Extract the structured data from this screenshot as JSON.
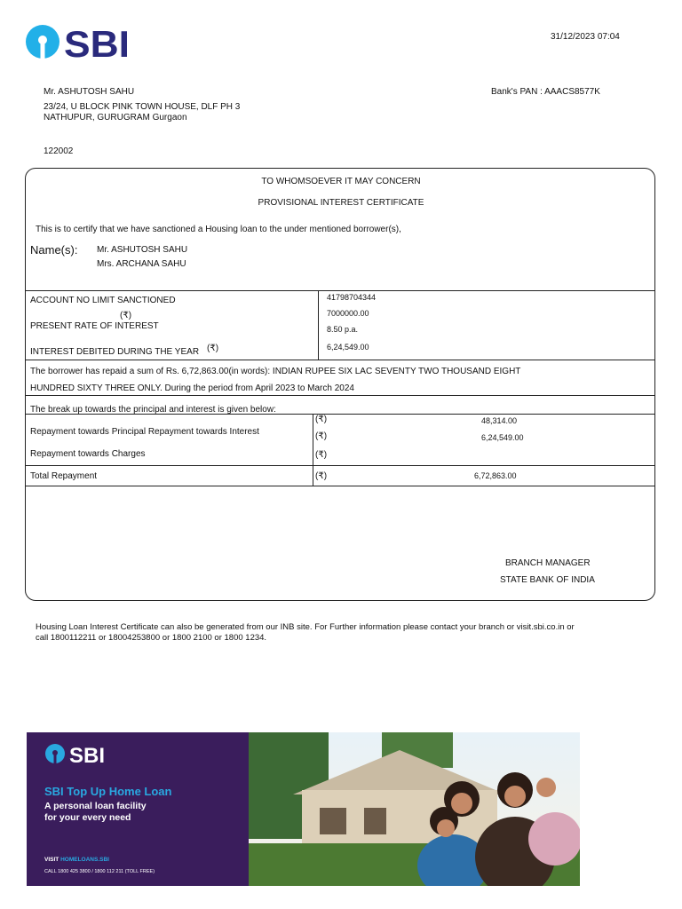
{
  "header": {
    "logo_text": "SBI",
    "datetime": "31/12/2023 07:04",
    "bank_pan": "Bank's PAN : AAACS8577K"
  },
  "address": {
    "name": "Mr. ASHUTOSH  SAHU",
    "line1": "23/24, U BLOCK PINK TOWN HOUSE, DLF PH 3",
    "line2": "NATHUPUR, GURUGRAM Gurgaon",
    "pin": "122002"
  },
  "certificate": {
    "title1": "TO WHOMSOEVER IT MAY CONCERN",
    "title2": "PROVISIONAL INTEREST CERTIFICATE",
    "intro": "This is to certify that we have sanctioned a Housing loan to the under mentioned borrower(s),",
    "names_label": "Name(s):",
    "names": [
      "Mr. ASHUTOSH  SAHU",
      "Mrs. ARCHANA SAHU"
    ],
    "account_label": "ACCOUNT NO LIMIT SANCTIONED",
    "rupee": "(₹)",
    "rate_label": "PRESENT RATE OF INTEREST",
    "interest_label": "INTEREST DEBITED DURING THE YEAR",
    "account_no": "41798704344",
    "limit": "7000000.00",
    "rate": "8.50 p.a.",
    "interest": "6,24,549.00",
    "repaid_line1": "The borrower has repaid a sum of Rs. 6,72,863.00(in words): INDIAN RUPEE SIX LAC SEVENTY TWO THOUSAND EIGHT",
    "repaid_line2": "HUNDRED SIXTY THREE ONLY. During the period from April 2023 to March 2024",
    "breakup_intro": "The break up towards the principal and interest is given below:",
    "principal_interest_label": "Repayment towards Principal Repayment towards Interest",
    "principal": "48,314.00",
    "interest_repaid": "6,24,549.00",
    "charges_label": "Repayment towards Charges",
    "total_label": "Total Repayment",
    "total": "6,72,863.00",
    "signatory1": "BRANCH MANAGER",
    "signatory2": "STATE BANK OF INDIA"
  },
  "footer": {
    "note_line1": "Housing Loan Interest Certificate can also be generated from our INB site. For Further information please contact your branch or visit.sbi.co.in or",
    "note_line2": "call 1800112211 or 18004253800 or 1800 2100 or 1800 1234."
  },
  "banner": {
    "logo_text": "SBI",
    "headline": "SBI Top Up Home Loan",
    "sub1": "A personal loan facility",
    "sub2": "for your every need",
    "visit_label": "VISIT",
    "visit_url": "HOMELOANS.SBI",
    "call": "CALL  1800 425 3800 / 1800 112 211 (TOLL FREE)",
    "colors": {
      "purple": "#3a1d5c",
      "cyan": "#29a8e0"
    }
  }
}
